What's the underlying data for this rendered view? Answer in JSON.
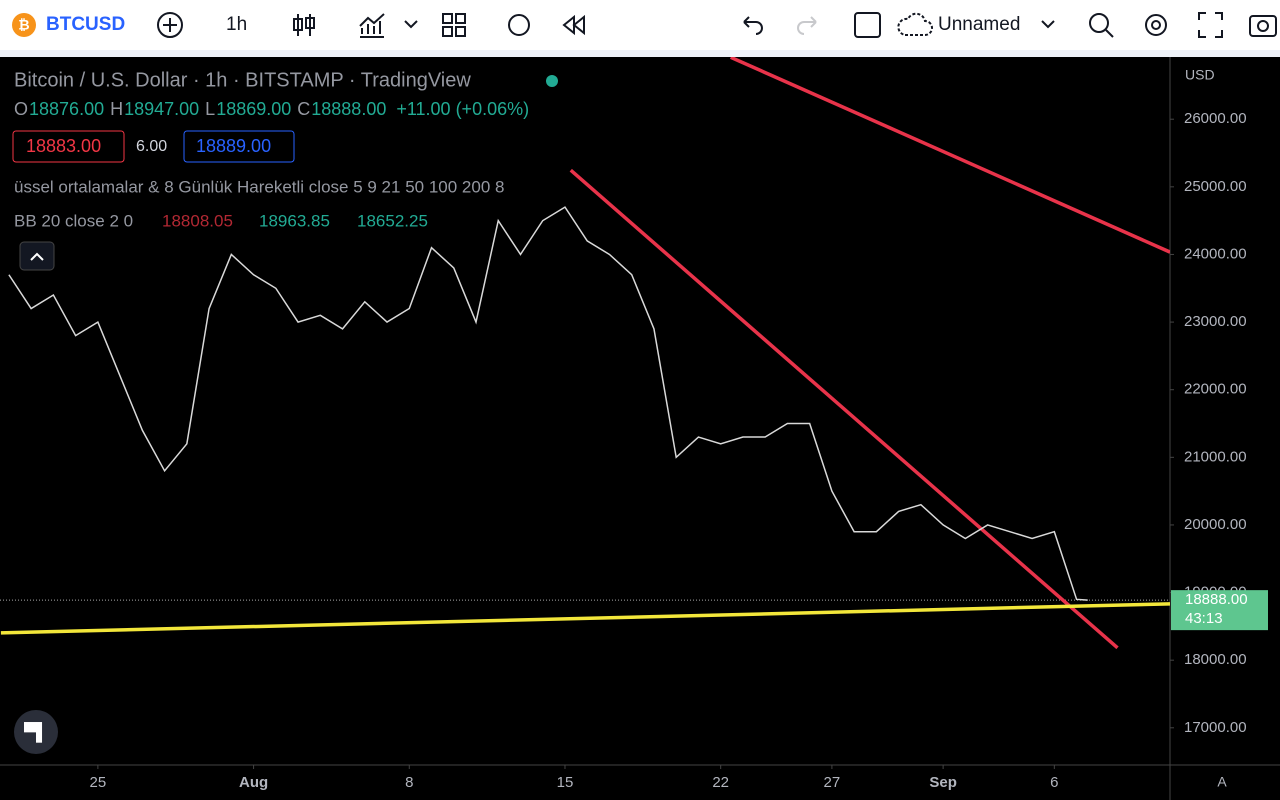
{
  "toolbar": {
    "symbol": "BTCUSD",
    "interval": "1h",
    "layout": "Unnamed"
  },
  "legend": {
    "title": "Bitcoin / U.S. Dollar · 1h · BITSTAMP · TradingView",
    "ohlc": [
      {
        "label": "O",
        "value": "18876.00"
      },
      {
        "label": "H",
        "value": "18947.00"
      },
      {
        "label": "L",
        "value": "18869.00"
      },
      {
        "label": "C",
        "value": "18888.00"
      }
    ],
    "change": "+11.00 (+0.06%)",
    "bid": "18883.00",
    "spread": "6.00",
    "ask": "18889.00",
    "ema": "üssel ortalamalar & 8 Günlük Hareketli close 5 9 21 50 100 200 8",
    "bb": "BB 20 close 2 0",
    "bb_values": [
      "18808.05",
      "18963.85",
      "18652.25"
    ]
  },
  "chart_data": {
    "type": "line",
    "currency": "USD",
    "scale_mode": "A",
    "x": [
      -4,
      -3,
      -2,
      -1,
      0,
      1,
      2,
      3,
      4,
      5,
      6,
      7,
      8,
      9,
      10,
      11,
      12,
      13,
      14,
      15,
      16,
      17,
      18,
      19,
      20,
      21,
      22,
      23,
      24,
      25,
      26,
      27,
      28,
      29,
      30,
      31,
      32,
      33,
      34,
      35,
      36,
      37,
      38,
      39,
      40,
      41,
      42,
      43,
      44,
      44.5
    ],
    "series": [
      {
        "name": "BTCUSD",
        "color": "#d9d9d9",
        "values": [
          23700,
          23200,
          23400,
          22800,
          23000,
          22200,
          21400,
          20800,
          21200,
          23200,
          24000,
          23700,
          23500,
          23000,
          23100,
          22900,
          23300,
          23000,
          23200,
          24100,
          23800,
          23000,
          24500,
          24000,
          24500,
          24700,
          24200,
          24000,
          23700,
          22900,
          21000,
          21300,
          21200,
          21300,
          21300,
          21500,
          21500,
          20500,
          19900,
          19900,
          20200,
          20300,
          20000,
          19800,
          20000,
          19900,
          19800,
          19900,
          18900,
          18888
        ]
      }
    ],
    "xlim": [
      -4.4,
      48.2
    ],
    "ylim": [
      16450,
      26920
    ],
    "xticks": [
      {
        "value": 0,
        "label": "25"
      },
      {
        "value": 7,
        "label": "Aug"
      },
      {
        "value": 14,
        "label": "8"
      },
      {
        "value": 21,
        "label": "15"
      },
      {
        "value": 28,
        "label": "22"
      },
      {
        "value": 33,
        "label": "27"
      },
      {
        "value": 38,
        "label": "Sep"
      },
      {
        "value": 43,
        "label": "6"
      }
    ],
    "yticks": [
      {
        "value": 17000,
        "label": "17000.00"
      },
      {
        "value": 18000,
        "label": "18000.00"
      },
      {
        "value": 19000,
        "label": "19000.00"
      },
      {
        "value": 20000,
        "label": "20000.00"
      },
      {
        "value": 21000,
        "label": "21000.00"
      },
      {
        "value": 22000,
        "label": "22000.00"
      },
      {
        "value": 23000,
        "label": "23000.00"
      },
      {
        "value": 24000,
        "label": "24000.00"
      },
      {
        "value": 25000,
        "label": "25000.00"
      },
      {
        "value": 26000,
        "label": "26000.00"
      }
    ],
    "drawings": [
      {
        "color": "#e8334a",
        "x": [
          28.45,
          48.2
        ],
        "values": [
          26916,
          24035
        ]
      },
      {
        "color": "#e8334a",
        "x": [
          21.26,
          45.84
        ],
        "values": [
          25246,
          18183
        ]
      },
      {
        "color": "#f2e63a",
        "x": [
          -4.36,
          48.2
        ],
        "values": [
          18404,
          18833
        ]
      }
    ],
    "last_price": {
      "value": 18888,
      "label": "18888.00",
      "countdown": "43:13"
    }
  }
}
